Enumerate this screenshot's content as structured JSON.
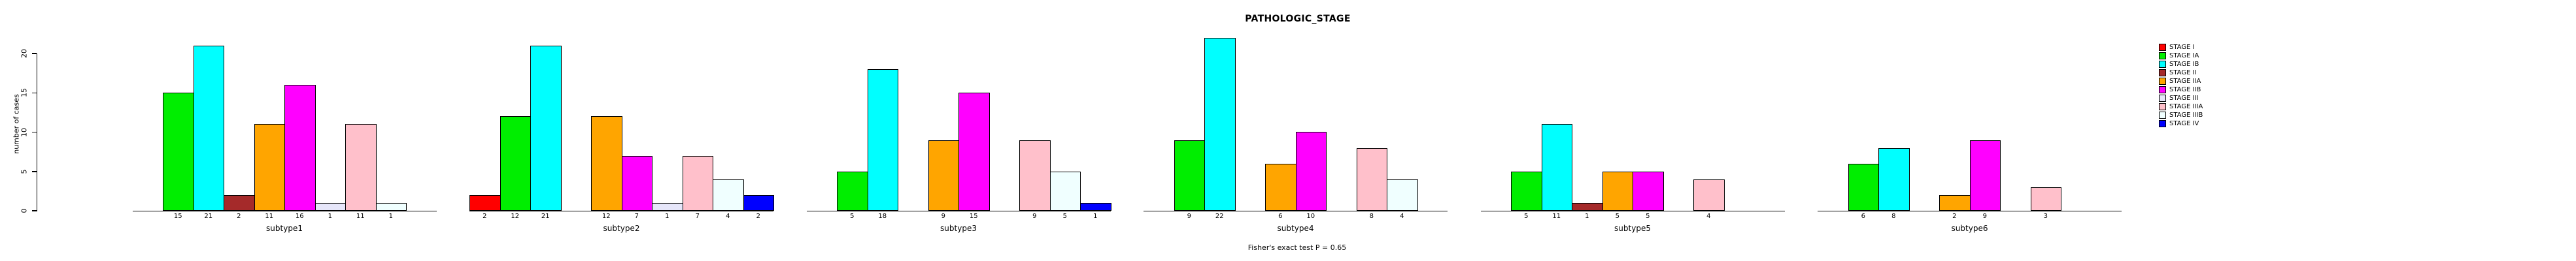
{
  "chart_data": {
    "type": "bar",
    "title": "PATHOLOGIC_STAGE",
    "annotation": "Fisher's exact test P = 0.65",
    "xlabel": "",
    "ylabel": "number of cases",
    "ylim": [
      0,
      22
    ],
    "yticks": [
      0,
      5,
      10,
      15,
      20
    ],
    "grid": false,
    "legend_position": "right",
    "categories": [
      "STAGE I",
      "STAGE IA",
      "STAGE IB",
      "STAGE II",
      "STAGE IIA",
      "STAGE IIB",
      "STAGE III",
      "STAGE IIIA",
      "STAGE IIIB",
      "STAGE IV"
    ],
    "colors": [
      "#FF0000",
      "#00EE00",
      "#00FFFF",
      "#A52A2A",
      "#FFA500",
      "#FF00FF",
      "#E6E6FA",
      "#FFC0CB",
      "#F0FFFF",
      "#0000FF"
    ],
    "groups": [
      {
        "label": "subtype1",
        "values": [
          0,
          15,
          21,
          2,
          11,
          16,
          1,
          11,
          1,
          0
        ]
      },
      {
        "label": "subtype2",
        "values": [
          2,
          12,
          21,
          0,
          12,
          7,
          1,
          7,
          4,
          2
        ]
      },
      {
        "label": "subtype3",
        "values": [
          0,
          5,
          18,
          0,
          9,
          15,
          0,
          9,
          5,
          1
        ]
      },
      {
        "label": "subtype4",
        "values": [
          0,
          9,
          22,
          0,
          6,
          10,
          0,
          8,
          4,
          0
        ]
      },
      {
        "label": "subtype5",
        "values": [
          0,
          5,
          11,
          1,
          5,
          5,
          0,
          4,
          0,
          0
        ]
      },
      {
        "label": "subtype6",
        "values": [
          0,
          6,
          8,
          0,
          2,
          9,
          0,
          3,
          0,
          0
        ]
      }
    ]
  }
}
